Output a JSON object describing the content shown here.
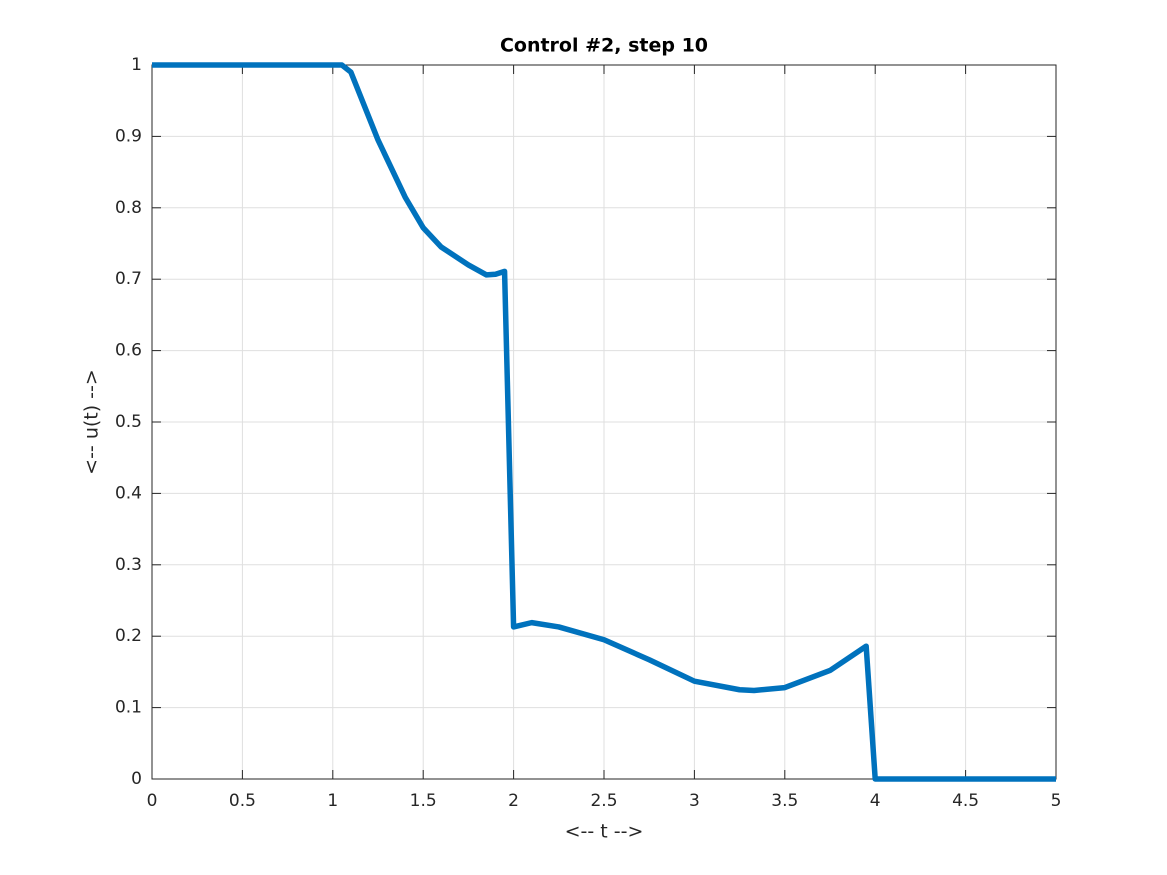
{
  "chart_data": {
    "type": "line",
    "title": "Control #2, step 10",
    "x_label": "<-- t -->",
    "y_label": "<-- u(t) -->",
    "x": [
      0,
      0.5,
      1,
      1.05,
      1.1,
      1.25,
      1.4,
      1.5,
      1.6,
      1.75,
      1.85,
      1.9,
      1.95,
      2.0,
      2.1,
      2.25,
      2.5,
      2.75,
      3.0,
      3.25,
      3.33,
      3.5,
      3.75,
      3.95,
      4.0,
      4.5,
      5
    ],
    "values": [
      1,
      1,
      1,
      1,
      0.99,
      0.895,
      0.815,
      0.772,
      0.745,
      0.72,
      0.706,
      0.707,
      0.711,
      0.213,
      0.219,
      0.213,
      0.195,
      0.167,
      0.137,
      0.125,
      0.124,
      0.128,
      0.152,
      0.186,
      0,
      0,
      0
    ],
    "color": "#0072bd",
    "xlim": [
      0,
      5
    ],
    "ylim": [
      0,
      1
    ],
    "xticks": [
      0,
      0.5,
      1,
      1.5,
      2,
      2.5,
      3,
      3.5,
      4,
      4.5,
      5
    ],
    "yticks": [
      0,
      0.1,
      0.2,
      0.3,
      0.4,
      0.5,
      0.6,
      0.7,
      0.8,
      0.9,
      1
    ],
    "grid": true
  }
}
